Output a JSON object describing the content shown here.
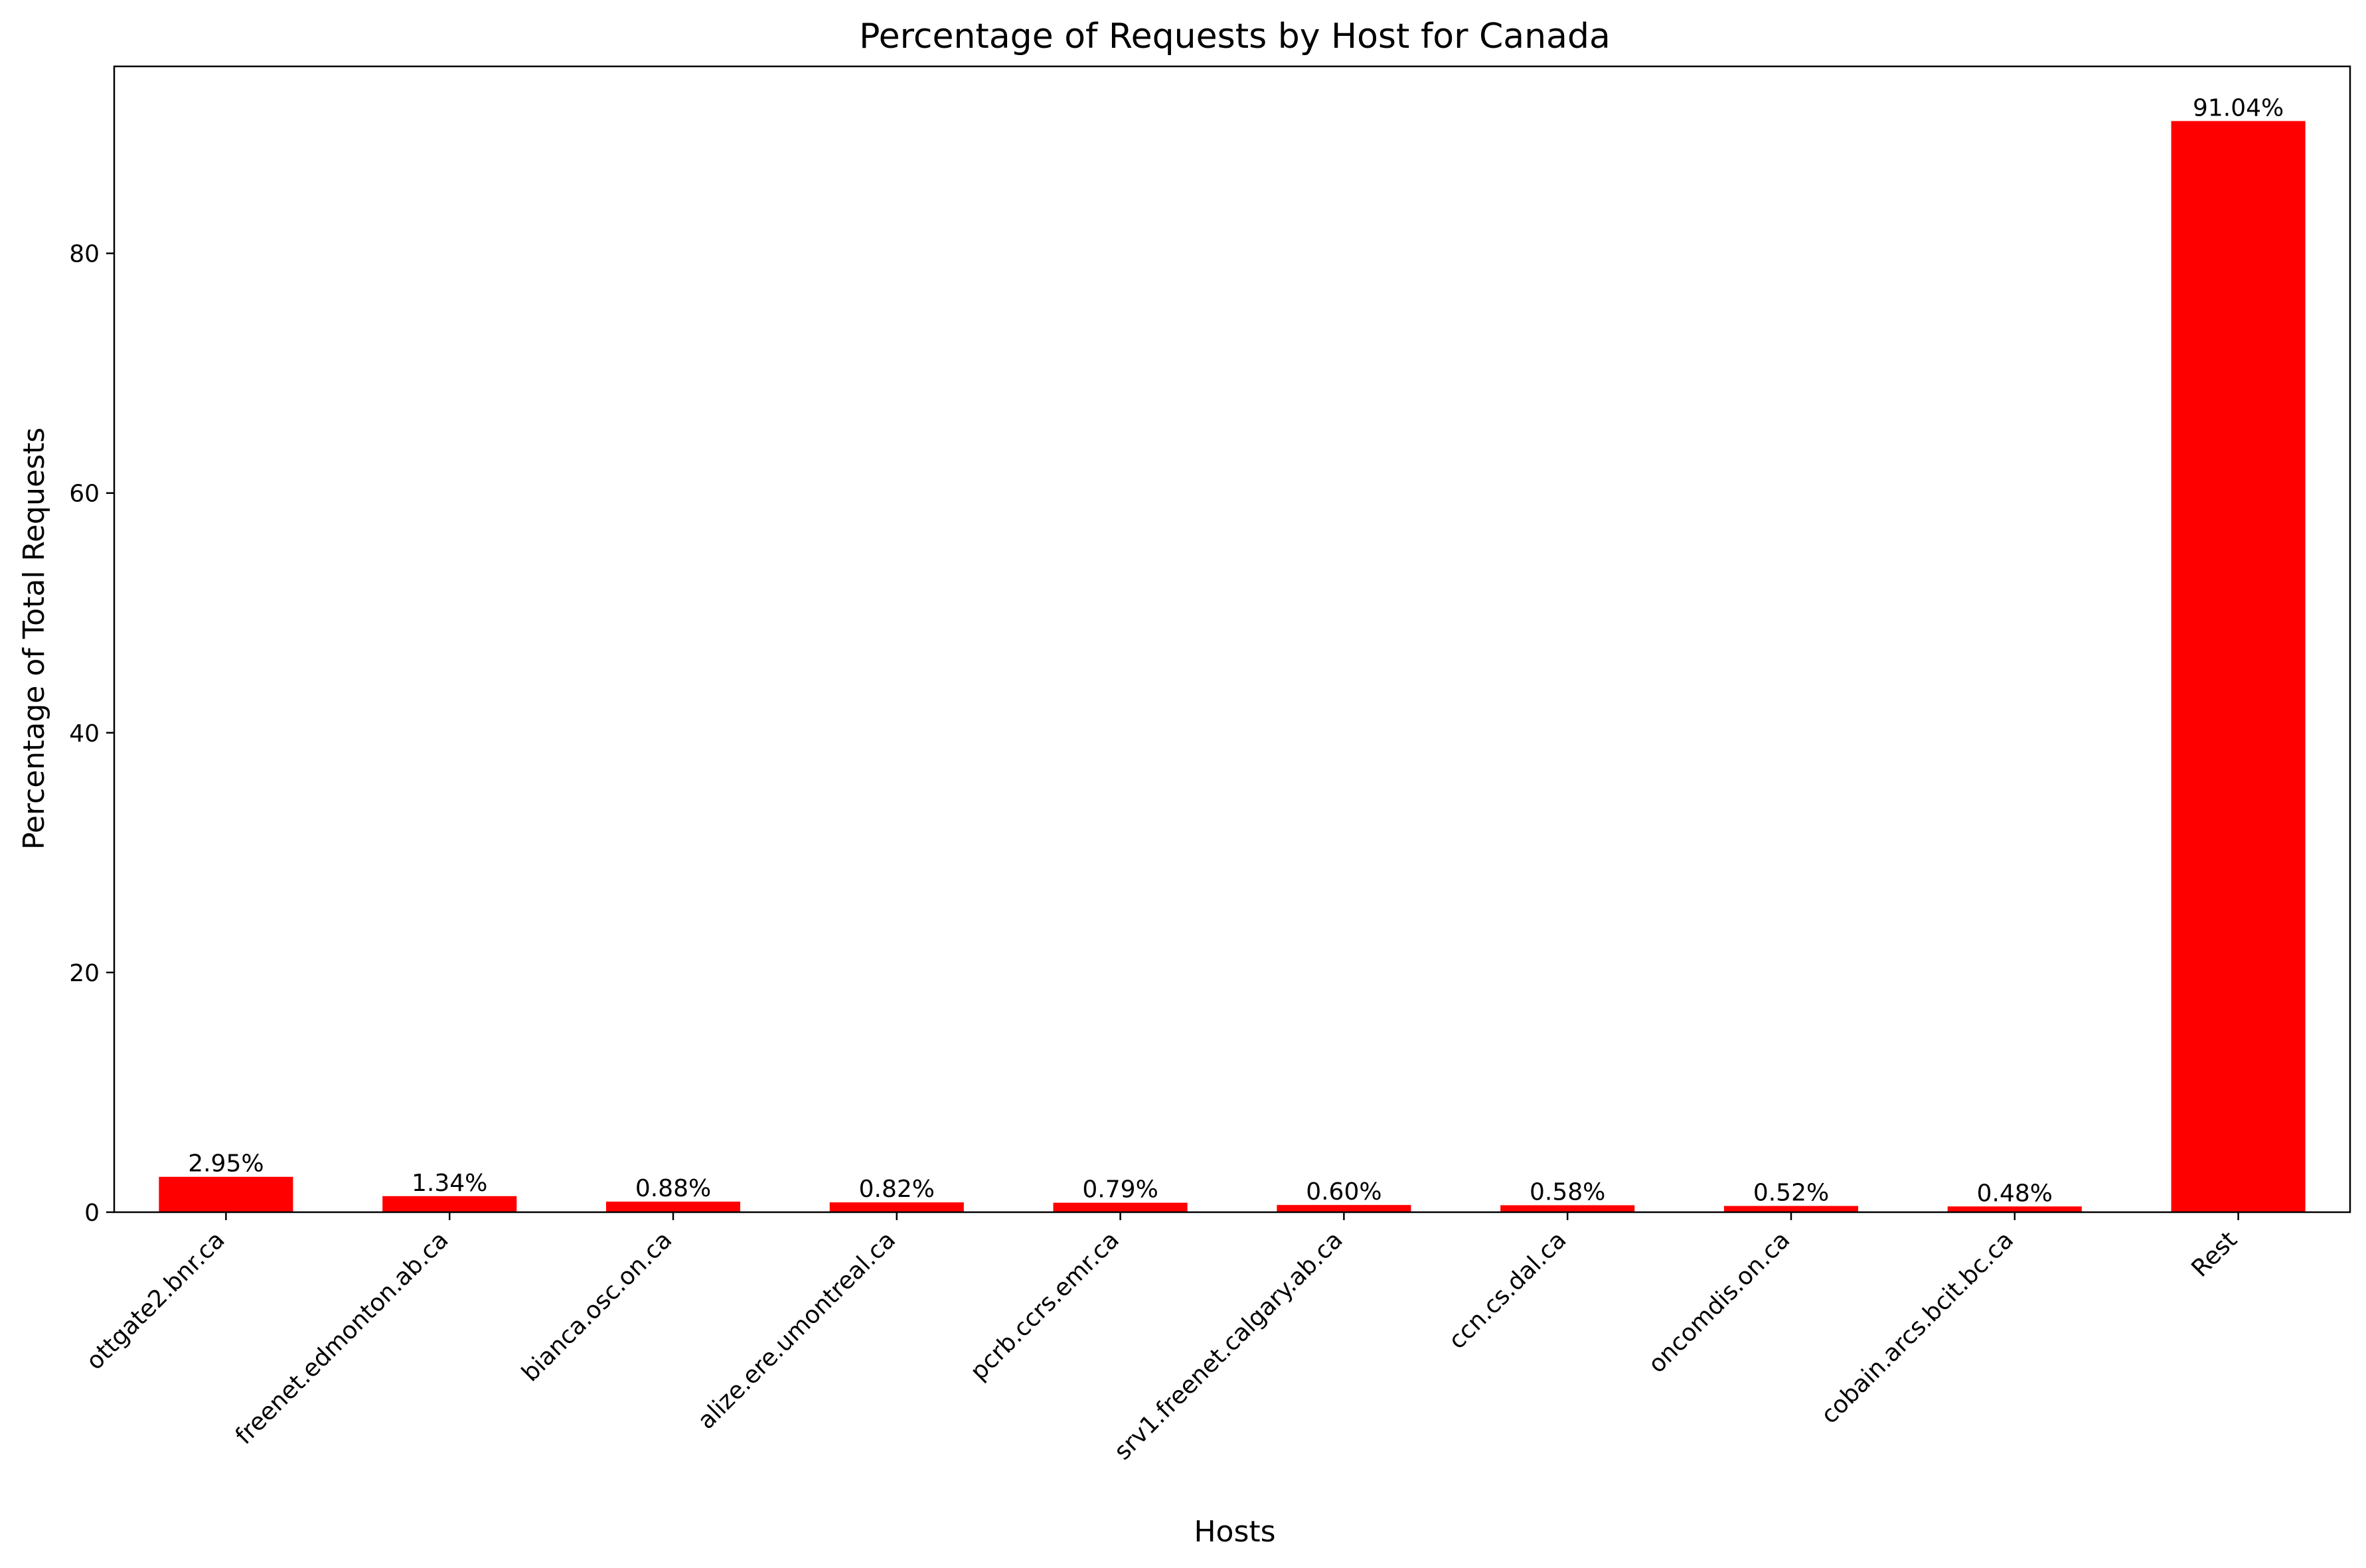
{
  "chart_data": {
    "type": "bar",
    "title": "Percentage of Requests by Host for Canada",
    "xlabel": "Hosts",
    "ylabel": "Percentage of Total Requests",
    "categories": [
      "ottgate2.bnr.ca",
      "freenet.edmonton.ab.ca",
      "bianca.osc.on.ca",
      "alize.ere.umontreal.ca",
      "pcrb.ccrs.emr.ca",
      "srv1.freenet.calgary.ab.ca",
      "ccn.cs.dal.ca",
      "oncomdis.on.ca",
      "cobain.arcs.bcit.bc.ca",
      "Rest"
    ],
    "values": [
      2.95,
      1.34,
      0.88,
      0.82,
      0.79,
      0.6,
      0.58,
      0.52,
      0.48,
      91.04
    ],
    "data_labels": [
      "2.95%",
      "1.34%",
      "0.88%",
      "0.82%",
      "0.79%",
      "0.60%",
      "0.58%",
      "0.52%",
      "0.48%",
      "91.04%"
    ],
    "ylim": [
      0,
      95.6
    ],
    "yticks": [
      0,
      20,
      40,
      60,
      80
    ],
    "bar_color": "#ff0000",
    "grid": false,
    "legend": "none"
  }
}
